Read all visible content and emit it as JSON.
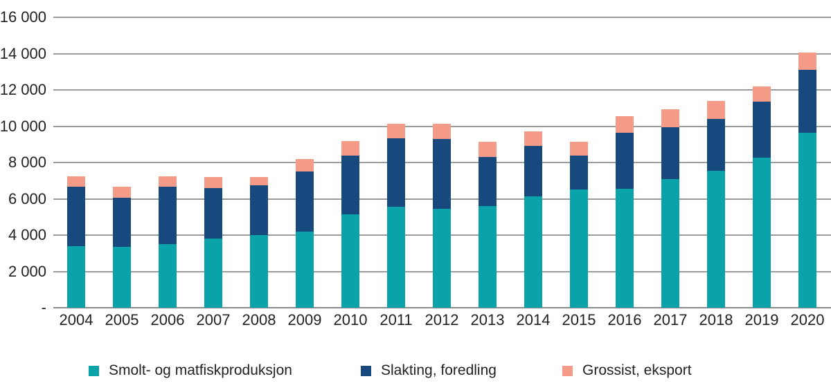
{
  "chart_data": {
    "type": "bar",
    "stacked": true,
    "title": "",
    "xlabel": "",
    "ylabel": "",
    "grid": true,
    "legend_position": "bottom",
    "ylim": [
      0,
      16000
    ],
    "y_ticks": [
      {
        "value": 16000,
        "label": "16 000"
      },
      {
        "value": 14000,
        "label": "14 000"
      },
      {
        "value": 12000,
        "label": "12 000"
      },
      {
        "value": 10000,
        "label": "10 000"
      },
      {
        "value": 8000,
        "label": "8 000"
      },
      {
        "value": 6000,
        "label": "6 000"
      },
      {
        "value": 4000,
        "label": "4 000"
      },
      {
        "value": 2000,
        "label": "2 000"
      },
      {
        "value": 0,
        "label": "-"
      }
    ],
    "categories": [
      "2004",
      "2005",
      "2006",
      "2007",
      "2008",
      "2009",
      "2010",
      "2011",
      "2012",
      "2013",
      "2014",
      "2015",
      "2016",
      "2017",
      "2018",
      "2019",
      "2020"
    ],
    "series": [
      {
        "name": "Smolt- og matfiskproduksjon",
        "color": "#0aa3a9",
        "values": [
          3400,
          3350,
          3500,
          3800,
          4000,
          4200,
          5150,
          5550,
          5450,
          5600,
          6150,
          6500,
          6550,
          7100,
          7550,
          8250,
          9650
        ]
      },
      {
        "name": "Slakting, foredling",
        "color": "#17497e",
        "values": [
          3250,
          2700,
          3150,
          2800,
          2750,
          3300,
          3250,
          3800,
          3850,
          2700,
          2750,
          1900,
          3100,
          2850,
          2850,
          3100,
          3450
        ]
      },
      {
        "name": "Grossist, eksport",
        "color": "#f69b87",
        "values": [
          600,
          600,
          600,
          600,
          450,
          700,
          800,
          800,
          850,
          850,
          800,
          750,
          900,
          1000,
          1000,
          850,
          950
        ]
      }
    ],
    "totals": [
      7250,
      6650,
      7250,
      7200,
      7200,
      8200,
      9200,
      10150,
      10150,
      9150,
      9700,
      9150,
      10550,
      10950,
      11400,
      12200,
      14050
    ]
  },
  "colors": {
    "gridline": "#9b9b9b",
    "text": "#231f20",
    "background": "#ffffff"
  }
}
